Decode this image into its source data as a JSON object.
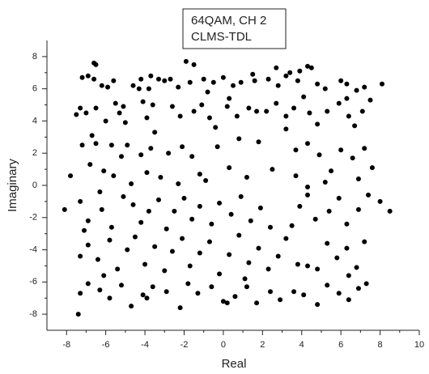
{
  "chart_data": {
    "type": "scatter",
    "title_lines": [
      "64QAM, CH 2",
      "CLMS-TDL"
    ],
    "x_label": "Real",
    "y_label": "Imaginary",
    "color": "#000000",
    "xlim": [
      -9,
      10
    ],
    "ylim": [
      -9,
      9
    ],
    "xticks": [
      -8,
      -6,
      -4,
      -2,
      0,
      2,
      4,
      6,
      8,
      10
    ],
    "yticks": [
      -8,
      -6,
      -4,
      -2,
      0,
      2,
      4,
      6,
      8
    ],
    "x": [
      -6.6,
      -6.5,
      -6.9,
      -7.2,
      -6.6,
      -5.9,
      -5.6,
      -6.2,
      -4.2,
      -3.7,
      -3.3,
      -3,
      -2.7,
      -3.8,
      -4.3,
      -1.9,
      -1.5,
      -1.7,
      -1,
      -0.5,
      0,
      0.5,
      0.9,
      1.5,
      1.6,
      2.3,
      2.8,
      3.2,
      3.4,
      3.8,
      4.3,
      4.5,
      4.8,
      5.2,
      6,
      6.3,
      6.8,
      7.2,
      8.1,
      2.7,
      3.9,
      -2.3,
      -0.8,
      0.3,
      -4.6,
      -7.3,
      -7.5,
      -7,
      -6.5,
      -5.5,
      -5.1,
      -5.3,
      -6,
      -5,
      -4.1,
      -3.6,
      -3.9,
      -3.5,
      -2.6,
      -2.2,
      -1.5,
      -1.1,
      -0.7,
      -0.4,
      0.2,
      0.7,
      1.3,
      1.7,
      2.2,
      2.7,
      3.2,
      3.6,
      3.2,
      4.1,
      4.4,
      4.8,
      5.3,
      5.9,
      6.4,
      7.1,
      6.7,
      6.3,
      7.5,
      -6.7,
      -5.7,
      -6.5,
      -7.2,
      -6.8,
      -6.1,
      -5.6,
      -6.3,
      -5.2,
      -4.9,
      -4.2,
      -3.7,
      -3.9,
      -3.2,
      -2.8,
      -2.1,
      -1.6,
      -1.2,
      -2.3,
      -0.3,
      0.8,
      1.8,
      2.5,
      3.7,
      4.3,
      4.9,
      5.5,
      6,
      6.6,
      7.2,
      7.6,
      6.9,
      5.2,
      4.3,
      3.7,
      -0.9,
      0.3,
      1.2,
      -4.7,
      -7.8,
      -8.1,
      -7.3,
      -6.9,
      -6.2,
      -5.7,
      -5.1,
      -4.6,
      -4.2,
      -3.8,
      -3.3,
      -2.9,
      -2.5,
      -2,
      -1.6,
      -1.2,
      -0.6,
      -0.2,
      0.4,
      0.9,
      1.4,
      1.9,
      2.4,
      3.9,
      4.3,
      4.7,
      5.4,
      5.9,
      6.3,
      6.9,
      7.4,
      8.5,
      8,
      3.5,
      -7.1,
      -7.3,
      -6.9,
      -6.4,
      -5.8,
      -5.4,
      -4.9,
      -4.5,
      -4,
      -3.5,
      -3,
      -2.6,
      -2.1,
      -1.7,
      -1.2,
      -0.7,
      -0.2,
      0.3,
      0.8,
      1.3,
      1.8,
      2.3,
      2.8,
      3.2,
      3.8,
      4.3,
      4.8,
      5.3,
      5.8,
      6.3,
      6.8,
      7.2,
      6.4,
      -6.1,
      1.1,
      -7.4,
      -7.3,
      -6.9,
      -6.3,
      -5.8,
      -5.2,
      -4.7,
      -4.1,
      -3.6,
      -2.9,
      -2.2,
      -1.8,
      -1.3,
      -0.6,
      0,
      0.6,
      1.2,
      1.7,
      2.4,
      2.9,
      3.6,
      4.1,
      4.8,
      5.3,
      5.9,
      6.4,
      6.9,
      7.3,
      -3.9,
      0.2
    ],
    "values": [
      7.6,
      7.5,
      6.8,
      6.7,
      6.6,
      6.1,
      6.5,
      6.2,
      6.6,
      6.8,
      6.6,
      6.5,
      6.6,
      6,
      6,
      7.7,
      7.5,
      6.4,
      6.6,
      6.4,
      6.7,
      6.2,
      6.4,
      6.9,
      6.5,
      6.6,
      6.2,
      6.8,
      7,
      6.5,
      7.4,
      7.3,
      6.3,
      6,
      6.5,
      6.3,
      5.9,
      6.1,
      6.3,
      7.3,
      7.1,
      6.1,
      5.8,
      5.4,
      6.2,
      4.8,
      4.4,
      4.5,
      4.8,
      5.1,
      4.9,
      4.5,
      4,
      3.9,
      5.2,
      5,
      4.2,
      3.3,
      4.9,
      4.3,
      4.6,
      5,
      4.2,
      3.6,
      4.9,
      4.3,
      4.8,
      4.6,
      4.6,
      5.1,
      4.3,
      4.8,
      3.5,
      5.5,
      4.5,
      3.8,
      4.6,
      5.1,
      4.3,
      4.6,
      3.7,
      5.4,
      5.3,
      3.1,
      2.5,
      2.6,
      2.5,
      1.3,
      0.9,
      0.6,
      -0.4,
      1.8,
      2.5,
      1.9,
      2.3,
      0.8,
      0.5,
      2,
      2.4,
      1.8,
      0.7,
      0.1,
      2.4,
      2.9,
      2.7,
      1,
      2.2,
      2.6,
      1.9,
      0.9,
      2.2,
      1.7,
      2.3,
      1.1,
      0.4,
      0.2,
      -0.1,
      0.6,
      0.3,
      1.1,
      0.5,
      0.1,
      0.6,
      -1.5,
      -1,
      -2.2,
      -1.5,
      -2.6,
      -0.7,
      -1.2,
      -2.3,
      -1.6,
      -0.9,
      -2.7,
      -1.6,
      -0.8,
      -2.1,
      -1.3,
      -2.4,
      -1.1,
      -1.8,
      -0.7,
      -2.2,
      -1.4,
      -2.6,
      -1.3,
      -0.6,
      -2.1,
      -1.6,
      -0.8,
      -2.4,
      -1.5,
      -0.6,
      -1.6,
      -1,
      -2.5,
      -2.8,
      -4.4,
      -3.7,
      -4.6,
      -3.4,
      -5.2,
      -4,
      -3.2,
      -4.9,
      -3.8,
      -5.3,
      -4.1,
      -3.3,
      -5,
      -4.2,
      -3.5,
      -5.5,
      -4.3,
      -3.1,
      -4.8,
      -3.9,
      -5.2,
      -4.4,
      -3.3,
      -4.9,
      -5,
      -5.2,
      -3.6,
      -4.5,
      -3.9,
      -5.1,
      -3.5,
      -5.6,
      -5.6,
      -5.8,
      -8,
      -6.7,
      -6.1,
      -6.5,
      -7,
      -6.2,
      -7.5,
      -6.8,
      -6.3,
      -6.6,
      -7.6,
      -6.1,
      -6.7,
      -6.3,
      -7.2,
      -6.9,
      -6.3,
      -7.3,
      -6.6,
      -7.1,
      -6.6,
      -6.8,
      -7.4,
      -6.2,
      -6.7,
      -7.1,
      -6.4,
      -6.1,
      -7,
      -7.3
    ]
  }
}
